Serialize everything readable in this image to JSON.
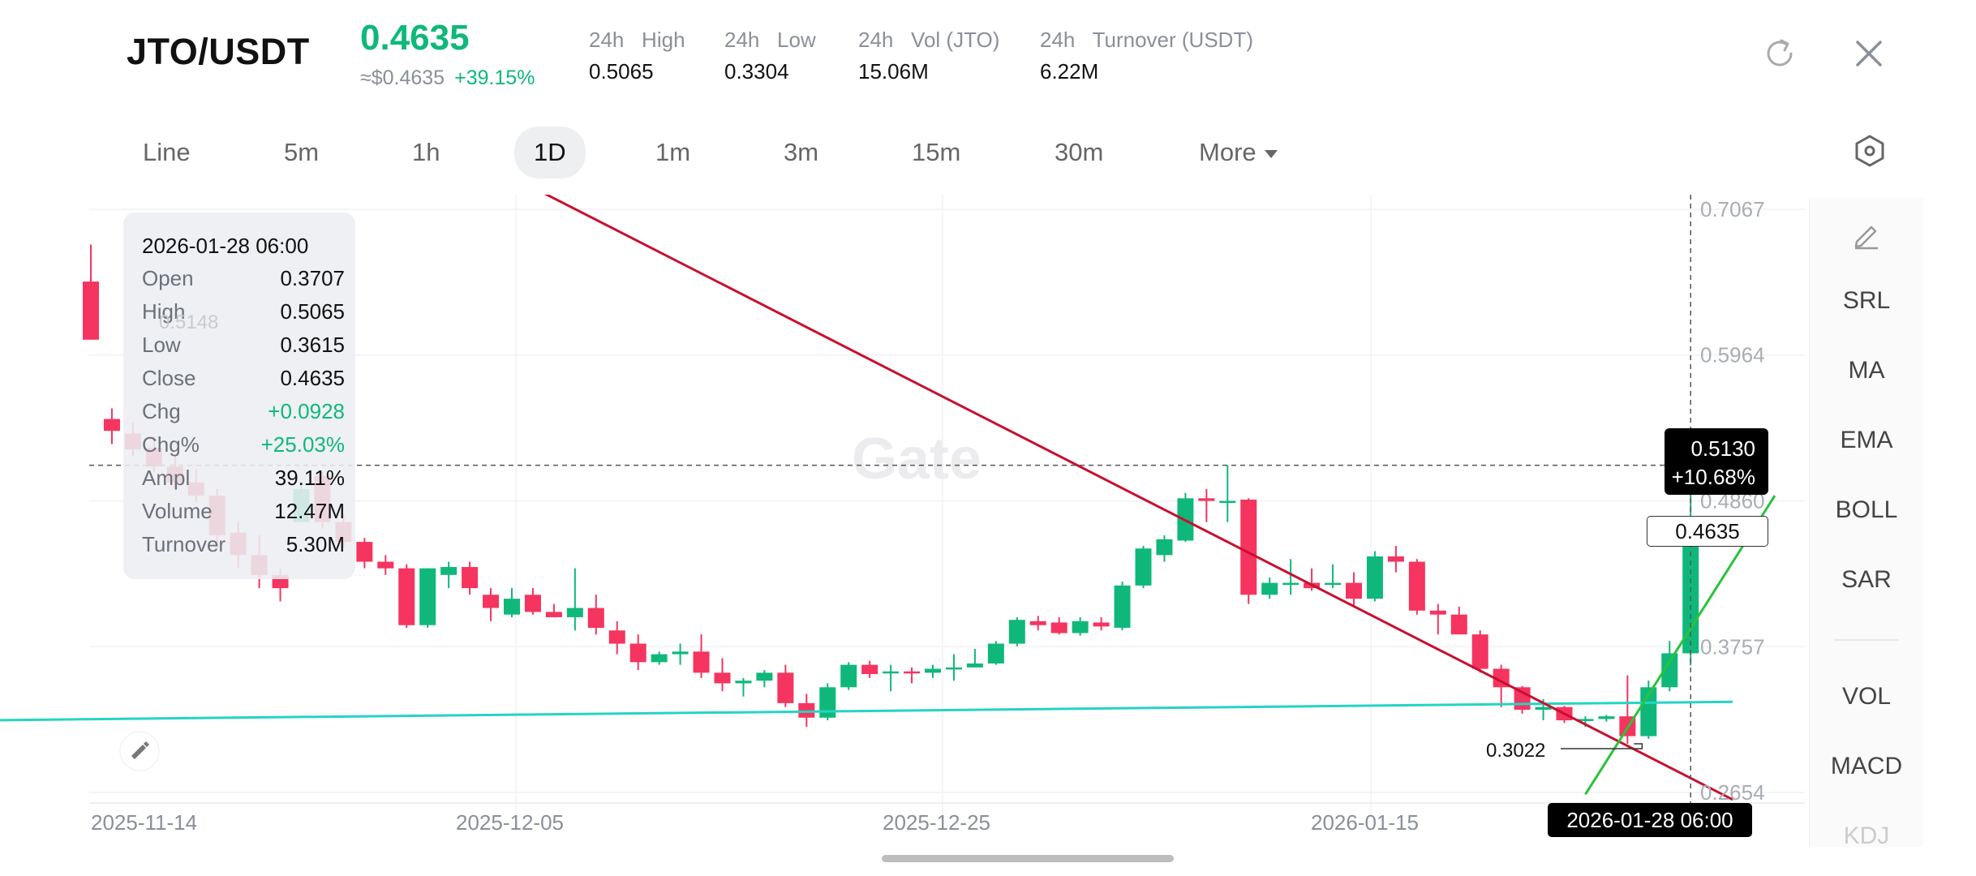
{
  "header": {
    "pair": "JTO/USDT",
    "price": "0.4635",
    "fiat_price": "≈$0.4635",
    "change_pct": "+39.15%",
    "stats": [
      {
        "label": "24h   High",
        "value": "0.5065"
      },
      {
        "label": "24h   Low",
        "value": "0.3304"
      },
      {
        "label": "24h   Vol (JTO)",
        "value": "15.06M"
      },
      {
        "label": "24h   Turnover (USDT)",
        "value": "6.22M"
      }
    ]
  },
  "toolbar": {
    "timeframes": [
      "Line",
      "5m",
      "1h",
      "1D",
      "1m",
      "3m",
      "15m",
      "30m"
    ],
    "active": "1D",
    "more_label": "More"
  },
  "ohlc": {
    "date": "2026-01-28 06:00",
    "rows": [
      {
        "k": "Open",
        "v": "0.3707"
      },
      {
        "k": "High",
        "v": "0.5065"
      },
      {
        "k": "Low",
        "v": "0.3615"
      },
      {
        "k": "Close",
        "v": "0.4635"
      },
      {
        "k": "Chg",
        "v": "+0.0928"
      },
      {
        "k": "Chg%",
        "v": "+25.03%"
      },
      {
        "k": "Ampl",
        "v": "39.11%"
      },
      {
        "k": "Volume",
        "v": "12.47M"
      },
      {
        "k": "Turnover",
        "v": "5.30M"
      }
    ]
  },
  "y_axis": [
    "0.7067",
    "0.5964",
    "0.4860",
    "0.3757",
    "0.2654"
  ],
  "x_axis": [
    "2025-11-14",
    "2025-12-05",
    "2025-12-25",
    "2026-01-15"
  ],
  "crosshair": {
    "price": "0.5130",
    "pct": "+10.68%",
    "date": "2026-01-28 06:00"
  },
  "last_price_badge": "0.4635",
  "low_marker": "0.3022",
  "partial_high_marker": "0.5148",
  "side_panel": [
    "SRL",
    "MA",
    "EMA",
    "BOLL",
    "SAR",
    "VOL",
    "MACD",
    "KDJ"
  ],
  "colors": {
    "up": "#0fb87a",
    "down": "#f5345f",
    "trend_down": "#c8102e",
    "trend_up": "#2ac33a",
    "support": "#24d4c4"
  },
  "chart_data": {
    "type": "candlestick",
    "ylim": [
      0.2654,
      0.7067
    ],
    "candles": [
      {
        "o": 0.652,
        "h": 0.68,
        "l": 0.608,
        "c": 0.608
      },
      {
        "o": 0.548,
        "h": 0.556,
        "l": 0.529,
        "c": 0.539
      },
      {
        "o": 0.537,
        "h": 0.545,
        "l": 0.52,
        "c": 0.525
      },
      {
        "o": 0.526,
        "h": 0.535,
        "l": 0.508,
        "c": 0.512
      },
      {
        "o": 0.512,
        "h": 0.52,
        "l": 0.495,
        "c": 0.5
      },
      {
        "o": 0.5,
        "h": 0.51,
        "l": 0.485,
        "c": 0.49
      },
      {
        "o": 0.49,
        "h": 0.495,
        "l": 0.45,
        "c": 0.46
      },
      {
        "o": 0.462,
        "h": 0.47,
        "l": 0.435,
        "c": 0.445
      },
      {
        "o": 0.445,
        "h": 0.46,
        "l": 0.42,
        "c": 0.43
      },
      {
        "o": 0.43,
        "h": 0.435,
        "l": 0.41,
        "c": 0.42
      },
      {
        "o": 0.47,
        "h": 0.498,
        "l": 0.47,
        "c": 0.495
      },
      {
        "o": 0.505,
        "h": 0.508,
        "l": 0.465,
        "c": 0.47
      },
      {
        "o": 0.47,
        "h": 0.476,
        "l": 0.45,
        "c": 0.455
      },
      {
        "o": 0.455,
        "h": 0.458,
        "l": 0.435,
        "c": 0.44
      },
      {
        "o": 0.44,
        "h": 0.445,
        "l": 0.43,
        "c": 0.435
      },
      {
        "o": 0.435,
        "h": 0.438,
        "l": 0.39,
        "c": 0.392
      },
      {
        "o": 0.392,
        "h": 0.435,
        "l": 0.39,
        "c": 0.435
      },
      {
        "o": 0.43,
        "h": 0.44,
        "l": 0.42,
        "c": 0.436
      },
      {
        "o": 0.436,
        "h": 0.44,
        "l": 0.415,
        "c": 0.42
      },
      {
        "o": 0.415,
        "h": 0.42,
        "l": 0.395,
        "c": 0.405
      },
      {
        "o": 0.4,
        "h": 0.42,
        "l": 0.398,
        "c": 0.412
      },
      {
        "o": 0.415,
        "h": 0.42,
        "l": 0.4,
        "c": 0.402
      },
      {
        "o": 0.402,
        "h": 0.408,
        "l": 0.398,
        "c": 0.398
      },
      {
        "o": 0.398,
        "h": 0.435,
        "l": 0.388,
        "c": 0.405
      },
      {
        "o": 0.405,
        "h": 0.415,
        "l": 0.385,
        "c": 0.39
      },
      {
        "o": 0.388,
        "h": 0.395,
        "l": 0.37,
        "c": 0.378
      },
      {
        "o": 0.378,
        "h": 0.385,
        "l": 0.358,
        "c": 0.364
      },
      {
        "o": 0.364,
        "h": 0.372,
        "l": 0.362,
        "c": 0.37
      },
      {
        "o": 0.37,
        "h": 0.378,
        "l": 0.362,
        "c": 0.372
      },
      {
        "o": 0.372,
        "h": 0.385,
        "l": 0.352,
        "c": 0.356
      },
      {
        "o": 0.356,
        "h": 0.367,
        "l": 0.342,
        "c": 0.348
      },
      {
        "o": 0.348,
        "h": 0.352,
        "l": 0.338,
        "c": 0.35
      },
      {
        "o": 0.35,
        "h": 0.358,
        "l": 0.345,
        "c": 0.356
      },
      {
        "o": 0.356,
        "h": 0.362,
        "l": 0.33,
        "c": 0.333
      },
      {
        "o": 0.333,
        "h": 0.34,
        "l": 0.315,
        "c": 0.322
      },
      {
        "o": 0.322,
        "h": 0.348,
        "l": 0.32,
        "c": 0.345
      },
      {
        "o": 0.345,
        "h": 0.364,
        "l": 0.343,
        "c": 0.362
      },
      {
        "o": 0.362,
        "h": 0.365,
        "l": 0.352,
        "c": 0.355
      },
      {
        "o": 0.356,
        "h": 0.362,
        "l": 0.342,
        "c": 0.357
      },
      {
        "o": 0.357,
        "h": 0.36,
        "l": 0.348,
        "c": 0.356
      },
      {
        "o": 0.356,
        "h": 0.362,
        "l": 0.352,
        "c": 0.359
      },
      {
        "o": 0.359,
        "h": 0.37,
        "l": 0.35,
        "c": 0.36
      },
      {
        "o": 0.36,
        "h": 0.374,
        "l": 0.36,
        "c": 0.363
      },
      {
        "o": 0.363,
        "h": 0.38,
        "l": 0.362,
        "c": 0.378
      },
      {
        "o": 0.378,
        "h": 0.398,
        "l": 0.376,
        "c": 0.396
      },
      {
        "o": 0.395,
        "h": 0.399,
        "l": 0.388,
        "c": 0.392
      },
      {
        "o": 0.394,
        "h": 0.398,
        "l": 0.385,
        "c": 0.386
      },
      {
        "o": 0.386,
        "h": 0.398,
        "l": 0.384,
        "c": 0.395
      },
      {
        "o": 0.394,
        "h": 0.398,
        "l": 0.388,
        "c": 0.391
      },
      {
        "o": 0.39,
        "h": 0.425,
        "l": 0.388,
        "c": 0.422
      },
      {
        "o": 0.422,
        "h": 0.452,
        "l": 0.42,
        "c": 0.45
      },
      {
        "o": 0.445,
        "h": 0.46,
        "l": 0.44,
        "c": 0.457
      },
      {
        "o": 0.456,
        "h": 0.492,
        "l": 0.455,
        "c": 0.488
      },
      {
        "o": 0.488,
        "h": 0.495,
        "l": 0.47,
        "c": 0.486
      },
      {
        "o": 0.486,
        "h": 0.513,
        "l": 0.47,
        "c": 0.486
      },
      {
        "o": 0.487,
        "h": 0.488,
        "l": 0.408,
        "c": 0.415
      },
      {
        "o": 0.415,
        "h": 0.428,
        "l": 0.412,
        "c": 0.424
      },
      {
        "o": 0.424,
        "h": 0.442,
        "l": 0.415,
        "c": 0.424
      },
      {
        "o": 0.424,
        "h": 0.435,
        "l": 0.418,
        "c": 0.42
      },
      {
        "o": 0.423,
        "h": 0.438,
        "l": 0.42,
        "c": 0.424
      },
      {
        "o": 0.424,
        "h": 0.432,
        "l": 0.406,
        "c": 0.412
      },
      {
        "o": 0.412,
        "h": 0.448,
        "l": 0.41,
        "c": 0.444
      },
      {
        "o": 0.444,
        "h": 0.452,
        "l": 0.432,
        "c": 0.44
      },
      {
        "o": 0.44,
        "h": 0.442,
        "l": 0.4,
        "c": 0.403
      },
      {
        "o": 0.403,
        "h": 0.408,
        "l": 0.385,
        "c": 0.4
      },
      {
        "o": 0.4,
        "h": 0.406,
        "l": 0.385,
        "c": 0.385
      },
      {
        "o": 0.385,
        "h": 0.388,
        "l": 0.356,
        "c": 0.359
      },
      {
        "o": 0.359,
        "h": 0.362,
        "l": 0.33,
        "c": 0.345
      },
      {
        "o": 0.345,
        "h": 0.346,
        "l": 0.325,
        "c": 0.328
      },
      {
        "o": 0.328,
        "h": 0.336,
        "l": 0.32,
        "c": 0.33
      },
      {
        "o": 0.33,
        "h": 0.331,
        "l": 0.318,
        "c": 0.32
      },
      {
        "o": 0.32,
        "h": 0.323,
        "l": 0.315,
        "c": 0.321
      },
      {
        "o": 0.321,
        "h": 0.324,
        "l": 0.319,
        "c": 0.323
      },
      {
        "o": 0.323,
        "h": 0.354,
        "l": 0.3022,
        "c": 0.308
      },
      {
        "o": 0.308,
        "h": 0.35,
        "l": 0.306,
        "c": 0.345
      },
      {
        "o": 0.345,
        "h": 0.38,
        "l": 0.342,
        "c": 0.3707
      },
      {
        "o": 0.3707,
        "h": 0.5065,
        "l": 0.3615,
        "c": 0.4635
      }
    ],
    "support_line": [
      {
        "date": "2025-11-08",
        "price": 0.32
      },
      {
        "date": "2026-01-30",
        "price": 0.334
      }
    ],
    "downtrend_line": [
      {
        "date": "2025-11-27",
        "price": 0.78
      },
      {
        "date": "2026-01-30",
        "price": 0.26
      }
    ],
    "uptrend_line": [
      {
        "date": "2026-01-23",
        "price": 0.264
      },
      {
        "date": "2026-02-01",
        "price": 0.49
      }
    ]
  }
}
